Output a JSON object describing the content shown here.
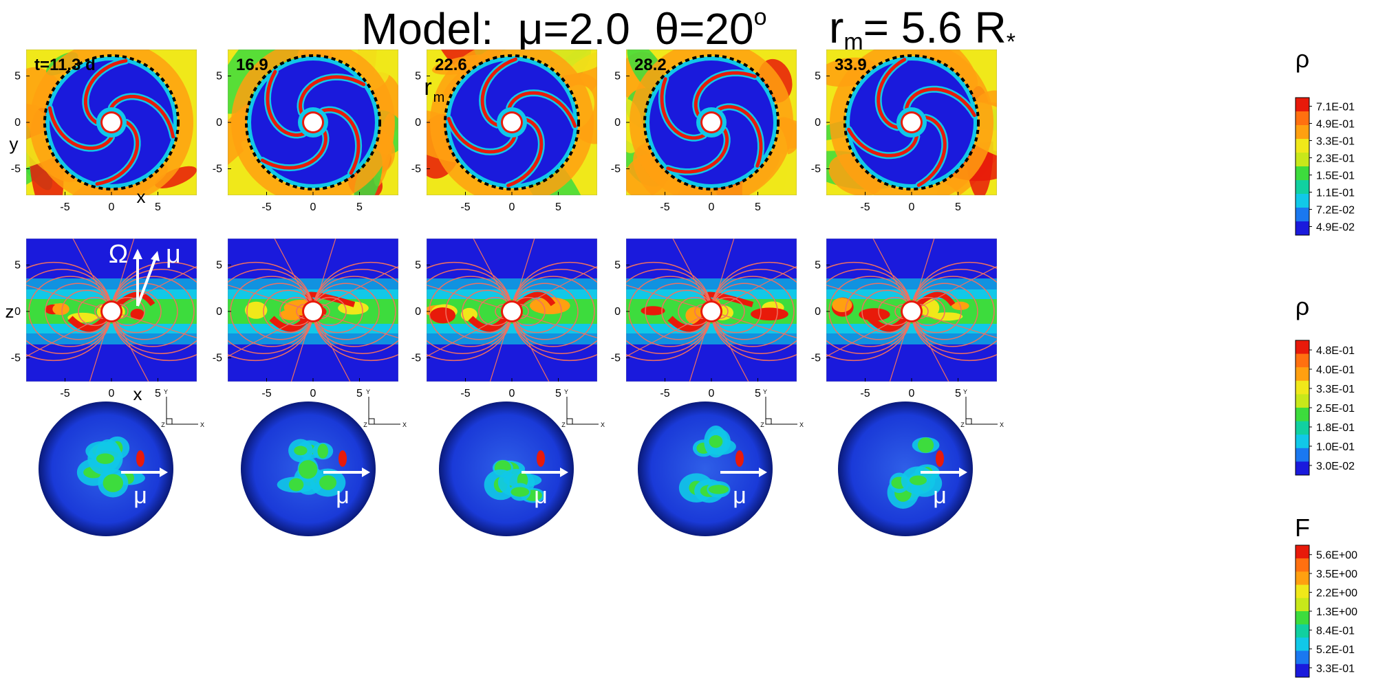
{
  "title": {
    "model_label": "Model:",
    "mu_expr": "μ=2.0",
    "theta_expr": "θ=20",
    "theta_sup": "o",
    "rm_prefix": "r",
    "rm_sub": "m",
    "rm_value": "= 5.6 R",
    "rm_sub2": "*"
  },
  "chart_data": {
    "type": "heatmap",
    "panel_times": [
      "t=11.3 d",
      "16.9",
      "22.6",
      "28.2",
      "33.9"
    ],
    "row1": {
      "description_key": "equatorial density slices",
      "xlabel": "x",
      "ylabel": "y",
      "xticks": [
        -5,
        0,
        5
      ],
      "yticks": [
        5,
        0,
        -5
      ],
      "circle_label": "r",
      "circle_label_sub": "m",
      "colorbar_title": "ρ",
      "colorbar_ticks": [
        "7.1E-01",
        "4.9E-01",
        "3.3E-01",
        "2.3E-01",
        "1.5E-01",
        "1.1E-01",
        "7.2E-02",
        "4.9E-02"
      ]
    },
    "row2": {
      "xlabel": "x",
      "ylabel": "z",
      "xticks": [
        -5,
        0,
        5
      ],
      "yticks": [
        5,
        0,
        -5
      ],
      "vector_labels": [
        "Ω",
        "μ"
      ],
      "colorbar_title": "ρ",
      "colorbar_ticks": [
        "4.8E-01",
        "4.0E-01",
        "3.3E-01",
        "2.5E-01",
        "1.8E-01",
        "1.0E-01",
        "3.0E-02"
      ]
    },
    "row3": {
      "vector_label": "μ",
      "axes_labels": [
        "Y",
        "Z",
        "X"
      ],
      "colorbar_title": "F",
      "colorbar_ticks": [
        "5.6E+00",
        "3.5E+00",
        "2.2E+00",
        "1.3E+00",
        "8.4E-01",
        "5.2E-01",
        "3.3E-01"
      ]
    }
  },
  "colors": {
    "low": "#1a1adc",
    "mid_low": "#11c8e8",
    "mid": "#3ddc3d",
    "mid_high": "#f0e81a",
    "high": "#ffa010",
    "top": "#e81a0a",
    "field_lines": "#f07060"
  }
}
